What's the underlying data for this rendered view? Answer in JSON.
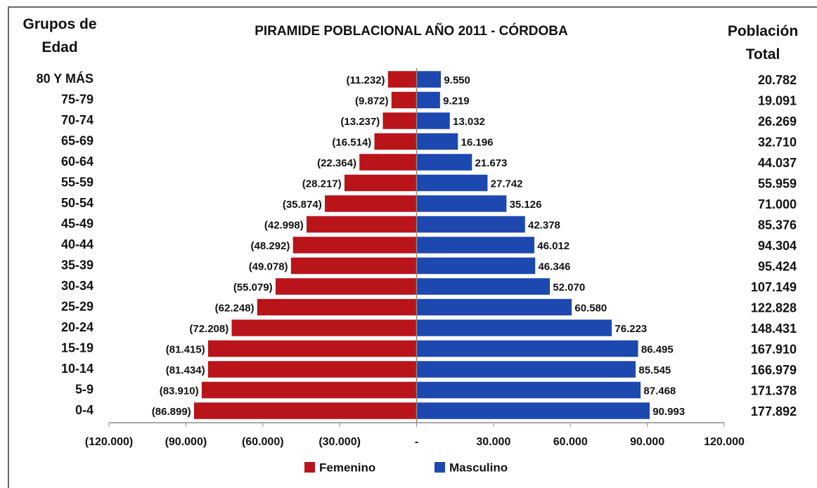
{
  "chart_data": {
    "type": "pyramid",
    "title": "PIRAMIDE POBLACIONAL AÑO 2011 - CÓRDOBA",
    "category_axis_title": "Grupos de Edad",
    "categories": [
      "80 Y MÁS",
      "75-79",
      "70-74",
      "65-69",
      "60-64",
      "55-59",
      "50-54",
      "45-49",
      "40-44",
      "35-39",
      "30-34",
      "25-29",
      "20-24",
      "15-19",
      "10-14",
      "5-9",
      "0-4"
    ],
    "series": [
      {
        "name": "Femenino",
        "color": "#b8141a",
        "values": [
          -11232,
          -9872,
          -13237,
          -16514,
          -22364,
          -28217,
          -35874,
          -42998,
          -48292,
          -49078,
          -55079,
          -62248,
          -72208,
          -81415,
          -81434,
          -83910,
          -86899
        ],
        "value_labels": [
          "(11.232)",
          "(9.872)",
          "(13.237)",
          "(16.514)",
          "(22.364)",
          "(28.217)",
          "(35.874)",
          "(42.998)",
          "(48.292)",
          "(49.078)",
          "(55.079)",
          "(62.248)",
          "(72.208)",
          "(81.415)",
          "(81.434)",
          "(83.910)",
          "(86.899)"
        ]
      },
      {
        "name": "Masculino",
        "color": "#1d48b0",
        "values": [
          9550,
          9219,
          13032,
          16196,
          21673,
          27742,
          35126,
          42378,
          46012,
          46346,
          52070,
          60580,
          76223,
          86495,
          85545,
          87468,
          90993
        ],
        "value_labels": [
          "9.550",
          "9.219",
          "13.032",
          "16.196",
          "21.673",
          "27.742",
          "35.126",
          "42.378",
          "46.012",
          "46.346",
          "52.070",
          "60.580",
          "76.223",
          "86.495",
          "85.545",
          "87.468",
          "90.993"
        ]
      }
    ],
    "totals": {
      "title": "Población Total",
      "values": [
        20782,
        19091,
        26269,
        32710,
        44037,
        55959,
        71000,
        85376,
        94304,
        95424,
        107149,
        122828,
        148431,
        167910,
        166979,
        171378,
        177892
      ],
      "value_labels": [
        "20.782",
        "19.091",
        "26.269",
        "32.710",
        "44.037",
        "55.959",
        "71.000",
        "85.376",
        "94.304",
        "95.424",
        "107.149",
        "122.828",
        "148.431",
        "167.910",
        "166.979",
        "171.378",
        "177.892"
      ]
    },
    "xlim": [
      -120000,
      120000
    ],
    "xticks": [
      {
        "value": -120000,
        "label": "(120.000)"
      },
      {
        "value": -90000,
        "label": "(90.000)"
      },
      {
        "value": -60000,
        "label": "(60.000)"
      },
      {
        "value": -30000,
        "label": "(30.000)"
      },
      {
        "value": 0,
        "label": "-"
      },
      {
        "value": 30000,
        "label": "30.000"
      },
      {
        "value": 60000,
        "label": "60.000"
      },
      {
        "value": 90000,
        "label": "90.000"
      },
      {
        "value": 120000,
        "label": "120.000"
      }
    ],
    "legend": "bottom"
  }
}
